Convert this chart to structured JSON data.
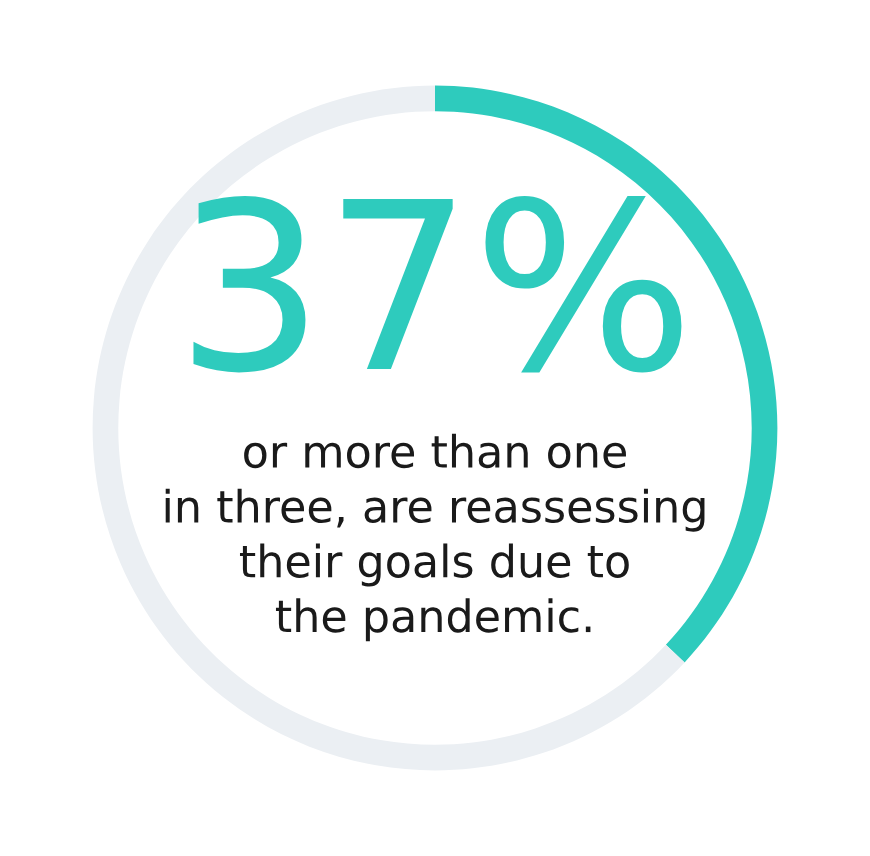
{
  "chart_data": {
    "type": "donut",
    "categories": [
      null,
      null
    ],
    "values": [
      37,
      63
    ],
    "colors": [
      "#2ecbbd",
      "#ebeff3"
    ],
    "value_labels": [
      "37%",
      null
    ],
    "annotations": [
      "or more than one\nin three, are reassessing\ntheir goals due to\nthe pandemic."
    ]
  }
}
